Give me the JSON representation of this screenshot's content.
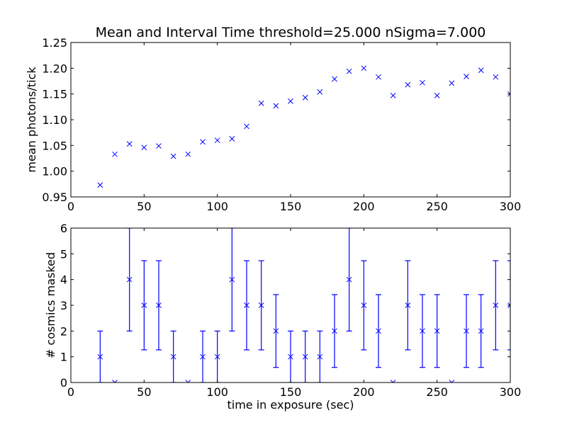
{
  "chart_data": [
    {
      "type": "scatter",
      "title": "Mean and Interval Time  threshold=25.000  nSigma=7.000",
      "xlabel": "",
      "ylabel": "mean photons/tick",
      "xlim": [
        0,
        300
      ],
      "ylim": [
        0.95,
        1.25
      ],
      "xticks": [
        "0",
        "50",
        "100",
        "150",
        "200",
        "250",
        "300"
      ],
      "yticks": [
        "0.95",
        "1.00",
        "1.05",
        "1.10",
        "1.15",
        "1.20",
        "1.25"
      ],
      "marker": "x",
      "color": "#0000ff",
      "grid": false,
      "x": [
        20,
        30,
        40,
        50,
        60,
        70,
        80,
        90,
        100,
        110,
        120,
        130,
        140,
        150,
        160,
        170,
        180,
        190,
        200,
        210,
        220,
        230,
        240,
        250,
        260,
        270,
        280,
        290,
        300
      ],
      "y": [
        0.973,
        1.033,
        1.053,
        1.046,
        1.049,
        1.029,
        1.033,
        1.057,
        1.06,
        1.063,
        1.087,
        1.132,
        1.127,
        1.136,
        1.143,
        1.154,
        1.179,
        1.194,
        1.2,
        1.183,
        1.147,
        1.168,
        1.172,
        1.147,
        1.171,
        1.184,
        1.196,
        1.183,
        1.15
      ]
    },
    {
      "type": "scatter",
      "title": "",
      "xlabel": "time in exposure (sec)",
      "ylabel": "# cosmics masked",
      "xlim": [
        0,
        300
      ],
      "ylim": [
        0,
        6
      ],
      "xticks": [
        "0",
        "50",
        "100",
        "150",
        "200",
        "250",
        "300"
      ],
      "yticks": [
        "0",
        "1",
        "2",
        "3",
        "4",
        "5",
        "6"
      ],
      "marker": "x",
      "error_bars": "sqrt(y)",
      "color": "#0000ff",
      "grid": false,
      "x": [
        20,
        30,
        40,
        50,
        60,
        70,
        80,
        90,
        100,
        110,
        120,
        130,
        140,
        150,
        160,
        170,
        180,
        190,
        200,
        210,
        220,
        230,
        240,
        250,
        260,
        270,
        280,
        290,
        300
      ],
      "y": [
        1,
        0,
        4,
        3,
        3,
        1,
        0,
        1,
        1,
        4,
        3,
        3,
        2,
        1,
        1,
        1,
        2,
        4,
        3,
        2,
        0,
        3,
        2,
        2,
        0,
        2,
        2,
        3,
        3
      ]
    }
  ]
}
